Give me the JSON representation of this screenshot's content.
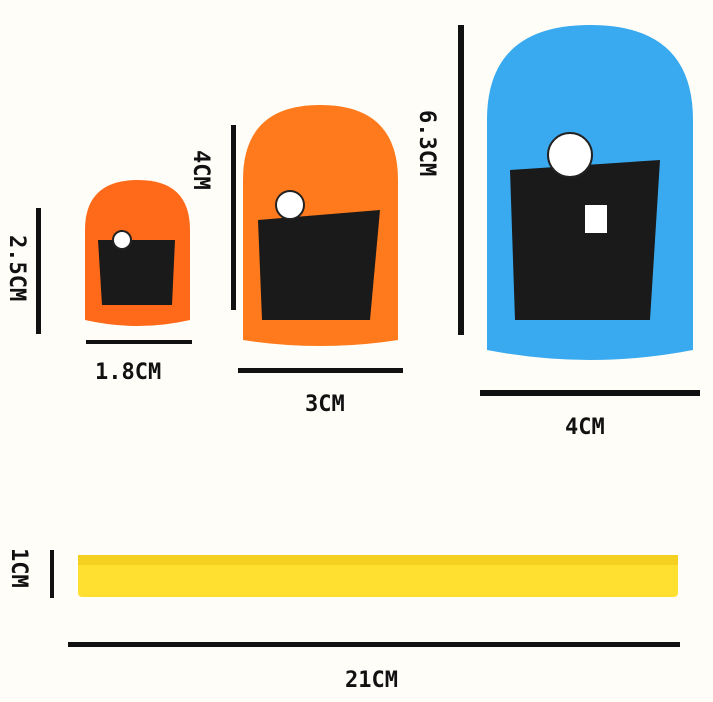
{
  "labels": {
    "small_h": "2.5CM",
    "small_w": "1.8CM",
    "mid_h": "4CM",
    "mid_w": "3CM",
    "big_h": "6.3CM",
    "big_w": "4CM",
    "bar_h": "1CM",
    "bar_w": "21CM"
  },
  "colors": {
    "small": "#ff6a1a",
    "mid": "#ff7a1c",
    "big": "#3aaaf0",
    "bar": "#ffe030"
  }
}
